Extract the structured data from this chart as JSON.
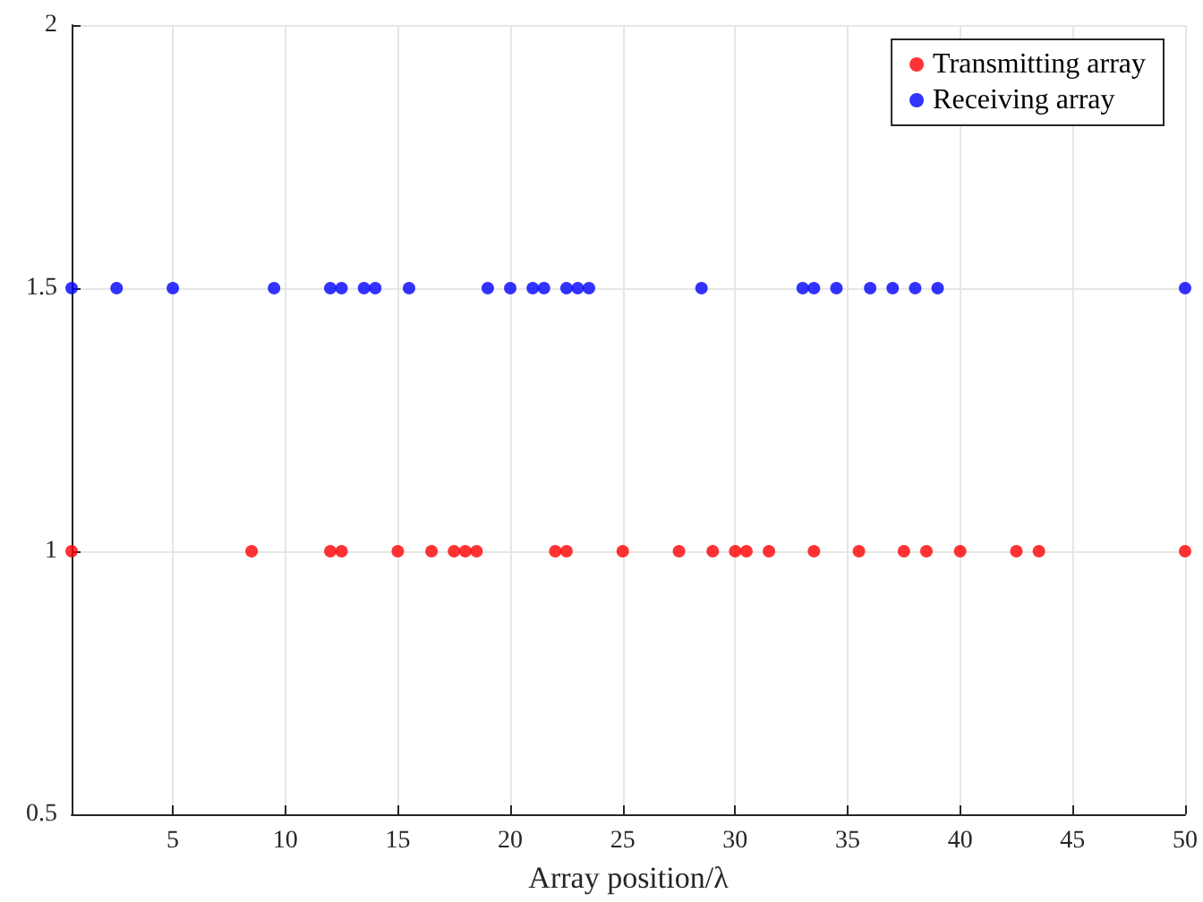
{
  "chart_data": {
    "type": "scatter",
    "xlabel": "Array position/λ",
    "xlim": [
      0.5,
      50
    ],
    "xticks": [
      5,
      10,
      15,
      20,
      25,
      30,
      35,
      40,
      45,
      50
    ],
    "ylim": [
      0.5,
      2
    ],
    "yticks": [
      0.5,
      1,
      1.5,
      2
    ],
    "grid": true,
    "legend": "top right",
    "marker": "circle",
    "series": [
      {
        "name": "Transmitting array",
        "color": "#ff0000",
        "x": [
          0.5,
          8.5,
          12,
          12.5,
          15,
          16.5,
          17.5,
          18,
          18.5,
          22,
          22.5,
          25,
          27.5,
          29,
          30,
          30.5,
          31.5,
          33.5,
          35.5,
          37.5,
          38.5,
          40,
          42.5,
          43.5,
          50
        ],
        "values": [
          1,
          1,
          1,
          1,
          1,
          1,
          1,
          1,
          1,
          1,
          1,
          1,
          1,
          1,
          1,
          1,
          1,
          1,
          1,
          1,
          1,
          1,
          1,
          1,
          1
        ]
      },
      {
        "name": "Receiving array",
        "color": "#0000ff",
        "x": [
          0.5,
          2.5,
          5,
          9.5,
          12,
          12.5,
          13.5,
          14,
          15.5,
          19,
          20,
          21,
          21.5,
          22.5,
          23,
          23.5,
          28.5,
          33,
          33.5,
          34.5,
          36,
          37,
          38,
          39,
          50
        ],
        "values": [
          1.5,
          1.5,
          1.5,
          1.5,
          1.5,
          1.5,
          1.5,
          1.5,
          1.5,
          1.5,
          1.5,
          1.5,
          1.5,
          1.5,
          1.5,
          1.5,
          1.5,
          1.5,
          1.5,
          1.5,
          1.5,
          1.5,
          1.5,
          1.5,
          1.5
        ]
      }
    ]
  }
}
